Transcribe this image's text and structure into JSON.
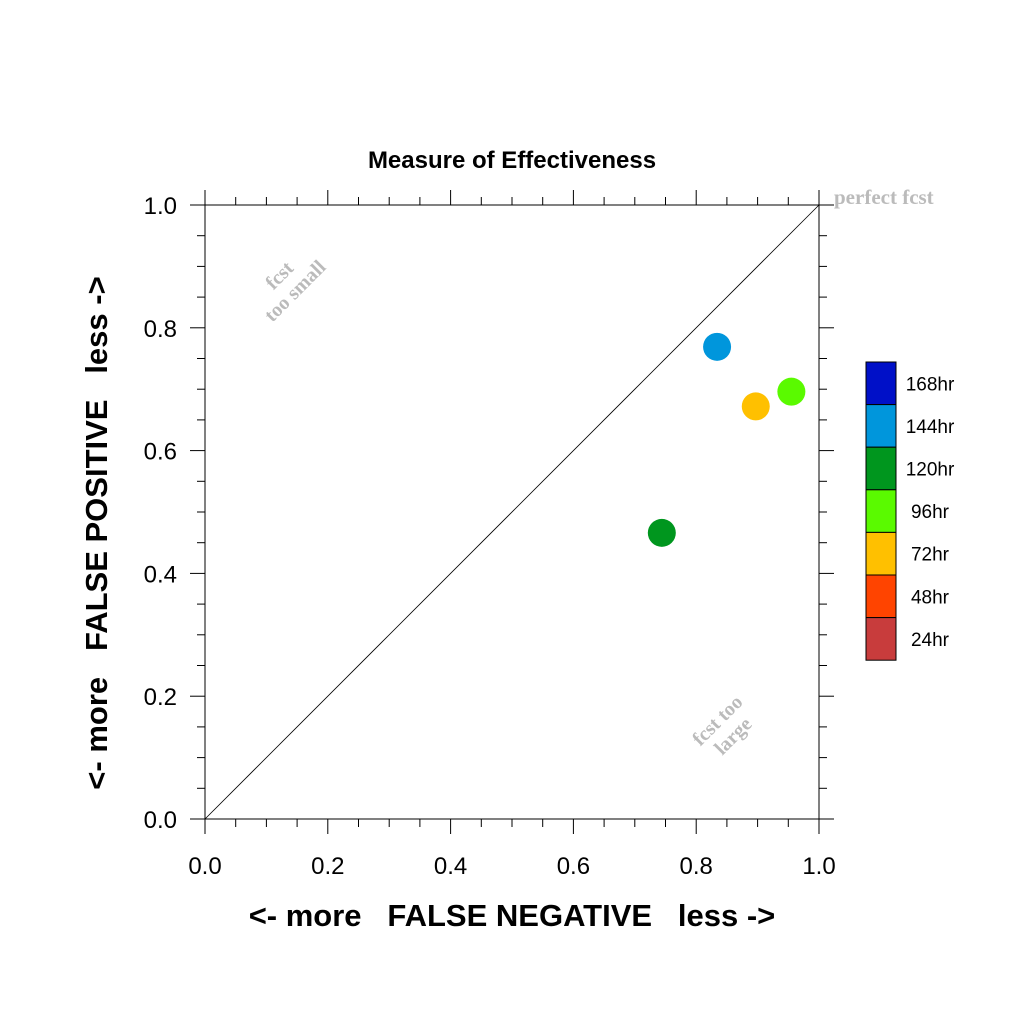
{
  "chart_data": {
    "type": "scatter",
    "title": "Measure of Effectiveness",
    "xlabel": "<- more   FALSE NEGATIVE   less ->",
    "ylabel": "<- more   FALSE POSITIVE   less ->",
    "xlim": [
      0.0,
      1.0
    ],
    "ylim": [
      0.0,
      1.0
    ],
    "xticks": [
      "0.0",
      "0.2",
      "0.4",
      "0.6",
      "0.8",
      "1.0"
    ],
    "yticks": [
      "0.0",
      "0.2",
      "0.4",
      "0.6",
      "0.8",
      "1.0"
    ],
    "grid": false,
    "annotations": {
      "top_left": "fcst\ntoo small",
      "bottom_right": "fcst too\nlarge",
      "corner": "perfect fcst"
    },
    "reference_line": "diagonal",
    "legend": {
      "placement": "right",
      "entries": [
        {
          "label": "168hr",
          "color": "#0010c8"
        },
        {
          "label": "144hr",
          "color": "#0096dc"
        },
        {
          "label": "120hr",
          "color": "#00961e"
        },
        {
          "label": "96hr",
          "color": "#5afa00"
        },
        {
          "label": "72hr",
          "color": "#ffc000"
        },
        {
          "label": "48hr",
          "color": "#ff4400"
        },
        {
          "label": "24hr",
          "color": "#c83c3c"
        }
      ]
    },
    "points": [
      {
        "series": "144hr",
        "x": 0.834,
        "y": 0.769,
        "color": "#0096dc"
      },
      {
        "series": "96hr",
        "x": 0.955,
        "y": 0.696,
        "color": "#5afa00"
      },
      {
        "series": "72hr",
        "x": 0.897,
        "y": 0.672,
        "color": "#ffc000"
      },
      {
        "series": "120hr",
        "x": 0.744,
        "y": 0.466,
        "color": "#00961e"
      }
    ]
  }
}
